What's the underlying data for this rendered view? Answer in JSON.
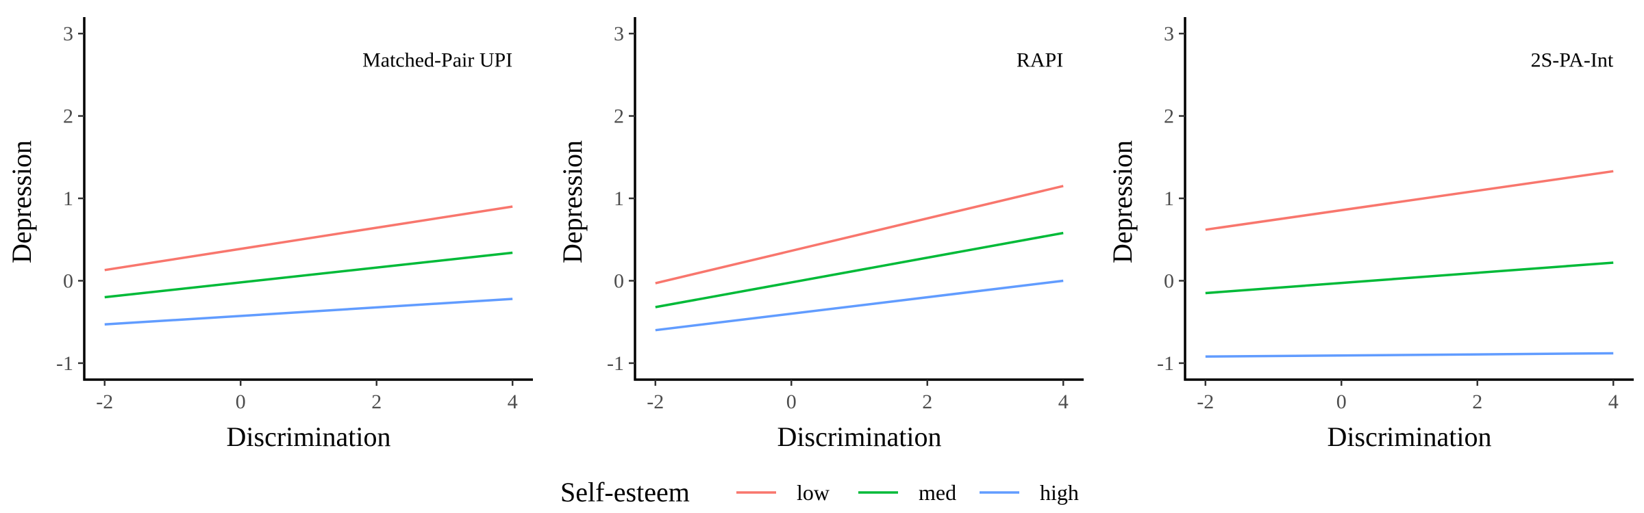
{
  "legend": {
    "title": "Self-esteem",
    "entries": [
      {
        "label": "low",
        "color": "#F8766D"
      },
      {
        "label": "med",
        "color": "#00BA38"
      },
      {
        "label": "high",
        "color": "#619CFF"
      }
    ]
  },
  "chart_data": [
    {
      "type": "line",
      "title": "Matched-Pair UPI",
      "xlabel": "Discrimination",
      "ylabel": "Depression",
      "xlim": [
        -2.3,
        4.3
      ],
      "ylim": [
        -1.2,
        3.2
      ],
      "xticks": [
        -2,
        0,
        2,
        4
      ],
      "xtick_labels": [
        "-2",
        "0",
        "2",
        "4"
      ],
      "yticks": [
        -1,
        0,
        1,
        2,
        3
      ],
      "ytick_labels": [
        "-1",
        "0",
        "1",
        "2",
        "3"
      ],
      "grid": false,
      "x": [
        -2,
        4
      ],
      "series": [
        {
          "name": "low",
          "values": [
            0.13,
            0.9
          ]
        },
        {
          "name": "med",
          "values": [
            -0.2,
            0.34
          ]
        },
        {
          "name": "high",
          "values": [
            -0.53,
            -0.22
          ]
        }
      ]
    },
    {
      "type": "line",
      "title": "RAPI",
      "xlabel": "Discrimination",
      "ylabel": "Depression",
      "xlim": [
        -2.3,
        4.3
      ],
      "ylim": [
        -1.2,
        3.2
      ],
      "xticks": [
        -2,
        0,
        2,
        4
      ],
      "xtick_labels": [
        "-2",
        "0",
        "2",
        "4"
      ],
      "yticks": [
        -1,
        0,
        1,
        2,
        3
      ],
      "ytick_labels": [
        "-1",
        "0",
        "1",
        "2",
        "3"
      ],
      "grid": false,
      "x": [
        -2,
        4
      ],
      "series": [
        {
          "name": "low",
          "values": [
            -0.03,
            1.15
          ]
        },
        {
          "name": "med",
          "values": [
            -0.32,
            0.58
          ]
        },
        {
          "name": "high",
          "values": [
            -0.6,
            0.0
          ]
        }
      ]
    },
    {
      "type": "line",
      "title": "2S-PA-Int",
      "xlabel": "Discrimination",
      "ylabel": "Depression",
      "xlim": [
        -2.3,
        4.3
      ],
      "ylim": [
        -1.2,
        3.2
      ],
      "xticks": [
        -2,
        0,
        2,
        4
      ],
      "xtick_labels": [
        "-2",
        "0",
        "2",
        "4"
      ],
      "yticks": [
        -1,
        0,
        1,
        2,
        3
      ],
      "ytick_labels": [
        "-1",
        "0",
        "1",
        "2",
        "3"
      ],
      "grid": false,
      "x": [
        -2,
        4
      ],
      "series": [
        {
          "name": "low",
          "values": [
            0.62,
            1.33
          ]
        },
        {
          "name": "med",
          "values": [
            -0.15,
            0.22
          ]
        },
        {
          "name": "high",
          "values": [
            -0.92,
            -0.88
          ]
        }
      ]
    }
  ]
}
